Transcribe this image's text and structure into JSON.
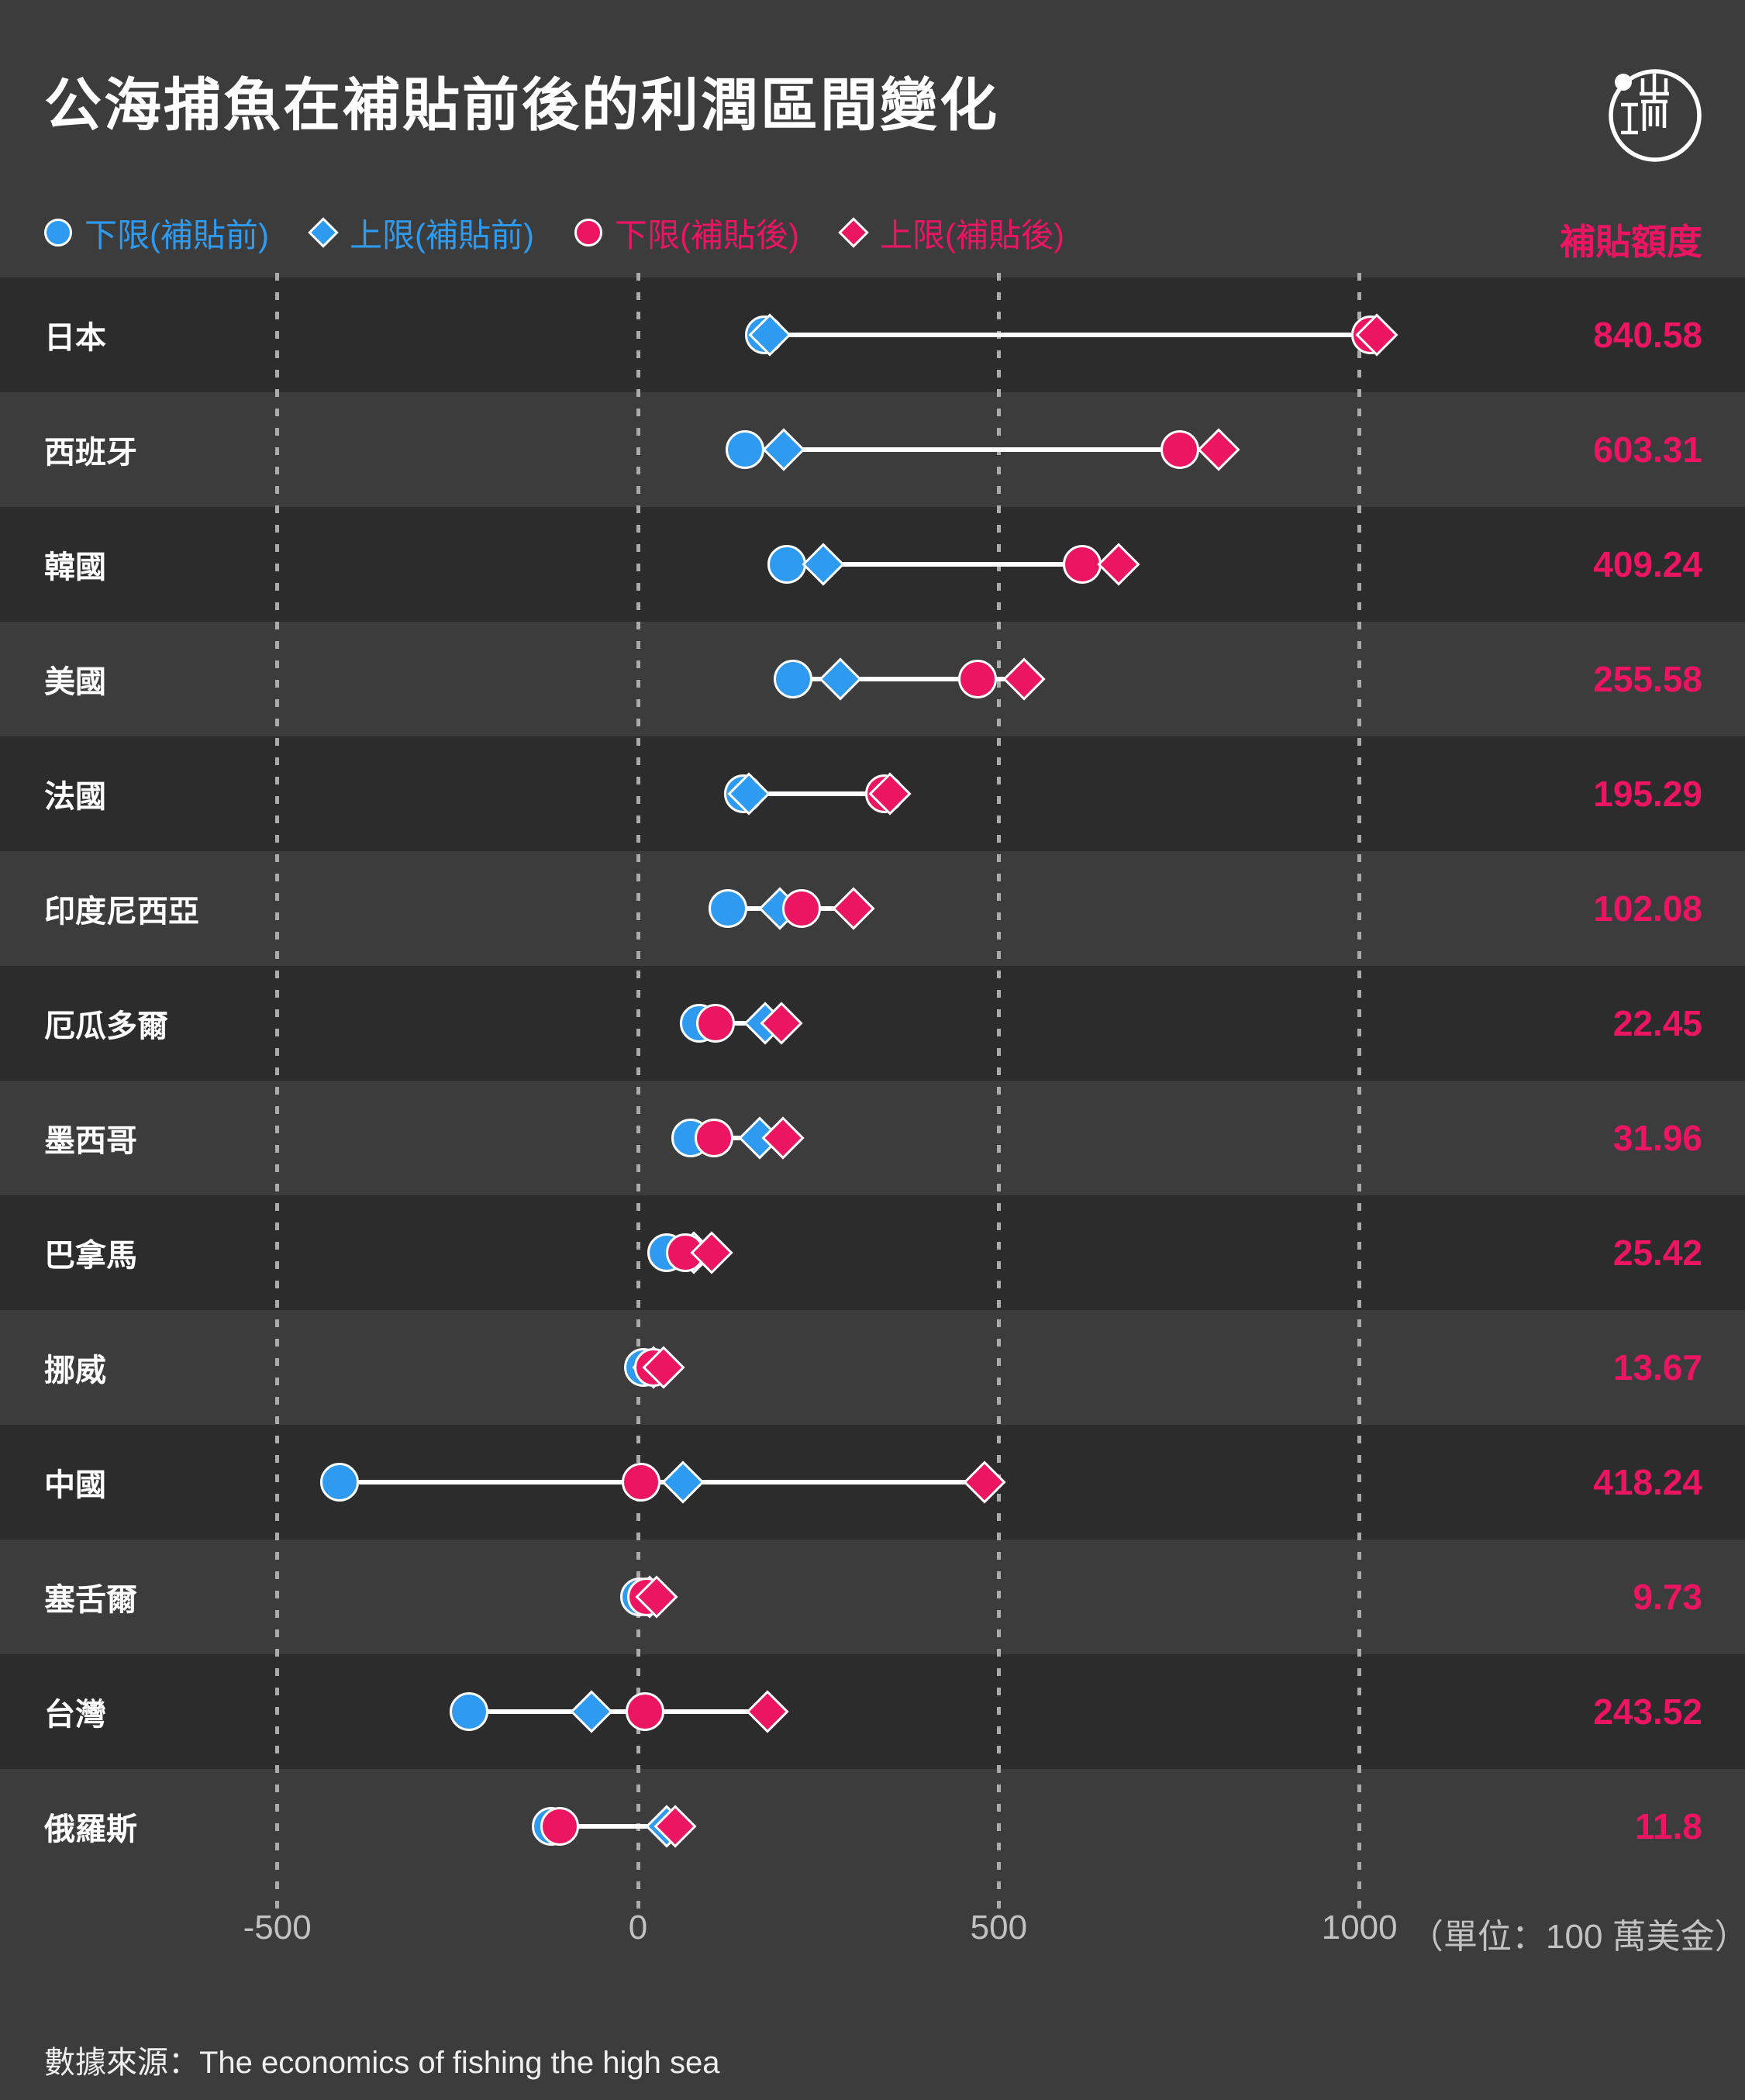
{
  "header": {
    "title": "公海捕魚在補貼前後的利潤區間變化"
  },
  "logo": {
    "name": "initium-media-logo"
  },
  "legend": {
    "items": [
      {
        "shape": "circle",
        "color": "blue",
        "label": "下限(補貼前)"
      },
      {
        "shape": "diamond",
        "color": "blue",
        "label": "上限(補貼前)"
      },
      {
        "shape": "circle",
        "color": "pink",
        "label": "下限(補貼後)"
      },
      {
        "shape": "diamond",
        "color": "pink",
        "label": "上限(補貼後)"
      }
    ],
    "amount_header": "補貼額度"
  },
  "colors": {
    "blue": "#2F9BF0",
    "pink": "#EC1562",
    "row_dark": "#2C2C2C",
    "background": "#3C3C3C",
    "gridline": "#ABABAB",
    "range_line": "#FFFFFF"
  },
  "chart_data": {
    "type": "dumbbell",
    "title": "公海捕魚在補貼前後的利潤區間變化",
    "x_ticks": [
      -500,
      0,
      500,
      1000
    ],
    "xlim": [
      -884,
      1534
    ],
    "x_unit_label": "（單位：100 萬美金）",
    "series_legend": [
      "下限(補貼前)",
      "上限(補貼前)",
      "下限(補貼後)",
      "上限(補貼後)"
    ],
    "amount_column_header": "補貼額度",
    "rows": [
      {
        "country": "日本",
        "before_low": 175,
        "before_high": 183,
        "after_low": 1015.6,
        "after_high": 1023.6,
        "subsidy": "840.58"
      },
      {
        "country": "西班牙",
        "before_low": 148,
        "before_high": 202,
        "after_low": 751.3,
        "after_high": 805.3,
        "subsidy": "603.31"
      },
      {
        "country": "韓國",
        "before_low": 206,
        "before_high": 257,
        "after_low": 615.2,
        "after_high": 666.2,
        "subsidy": "409.24"
      },
      {
        "country": "美國",
        "before_low": 215,
        "before_high": 280,
        "after_low": 470.6,
        "after_high": 535.6,
        "subsidy": "255.58"
      },
      {
        "country": "法國",
        "before_low": 146,
        "before_high": 154,
        "after_low": 341.3,
        "after_high": 349.3,
        "subsidy": "195.29"
      },
      {
        "country": "印度尼西亞",
        "before_low": 125,
        "before_high": 197,
        "after_low": 227.1,
        "after_high": 299.1,
        "subsidy": "102.08"
      },
      {
        "country": "厄瓜多爾",
        "before_low": 85,
        "before_high": 176,
        "after_low": 107.5,
        "after_high": 198.5,
        "subsidy": "22.45"
      },
      {
        "country": "墨西哥",
        "before_low": 73,
        "before_high": 169,
        "after_low": 105.0,
        "after_high": 201.0,
        "subsidy": "31.96"
      },
      {
        "country": "巴拿馬",
        "before_low": 40,
        "before_high": 77,
        "after_low": 65.4,
        "after_high": 102.4,
        "subsidy": "25.42"
      },
      {
        "country": "挪威",
        "before_low": 8,
        "before_high": 22,
        "after_low": 21.7,
        "after_high": 35.7,
        "subsidy": "13.67"
      },
      {
        "country": "中國",
        "before_low": -414,
        "before_high": 62,
        "after_low": 4.2,
        "after_high": 480.2,
        "subsidy": "418.24"
      },
      {
        "country": "塞舌爾",
        "before_low": 2,
        "before_high": 16,
        "after_low": 11.7,
        "after_high": 25.7,
        "subsidy": "9.73"
      },
      {
        "country": "台灣",
        "before_low": -234,
        "before_high": -64,
        "after_low": 9.5,
        "after_high": 179.5,
        "subsidy": "243.52"
      },
      {
        "country": "俄羅斯",
        "before_low": -120,
        "before_high": 40,
        "after_low": -108.2,
        "after_high": 51.8,
        "subsidy": "11.8"
      }
    ]
  },
  "axis": {
    "ticks": [
      "-500",
      "0",
      "500",
      "1000"
    ],
    "unit": "（單位：100 萬美金）"
  },
  "footer": {
    "source": "數據來源：The economics of fishing the high sea"
  }
}
